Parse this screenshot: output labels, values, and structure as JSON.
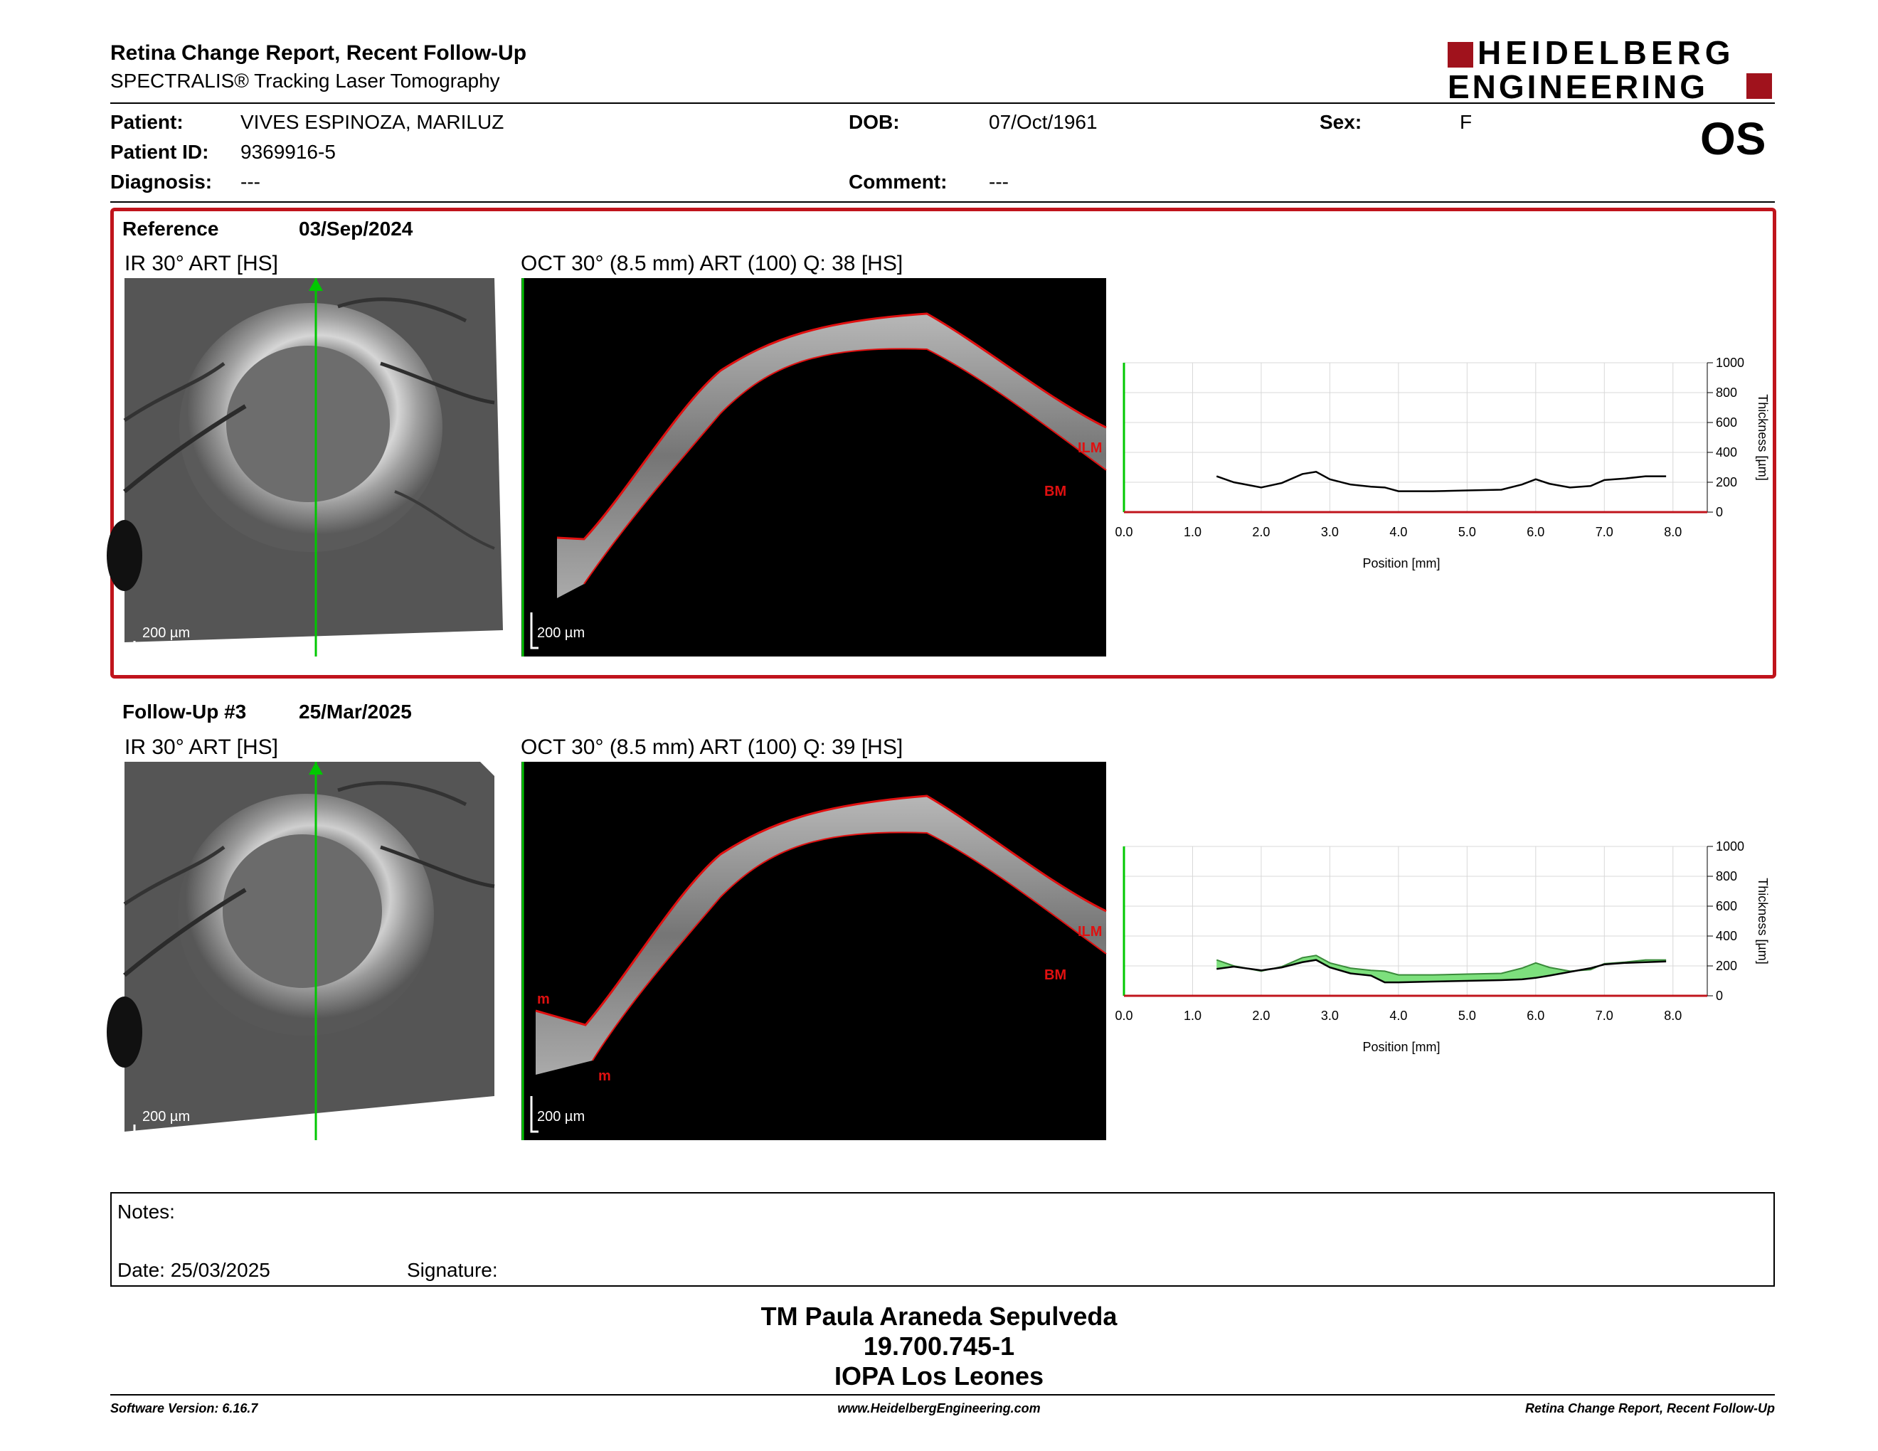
{
  "header": {
    "title": "Retina Change Report, Recent Follow-Up",
    "subtitle": "SPECTRALIS® Tracking Laser Tomography",
    "brand_line1": "HEIDELBERG",
    "brand_line2": "ENGINEERING",
    "eye": "OS"
  },
  "patient": {
    "name_label": "Patient:",
    "name": "VIVES ESPINOZA, MARILUZ",
    "id_label": "Patient ID:",
    "id": "9369916-5",
    "diagnosis_label": "Diagnosis:",
    "diagnosis": "---",
    "dob_label": "DOB:",
    "dob": "07/Oct/1961",
    "comment_label": "Comment:",
    "comment": "---",
    "sex_label": "Sex:",
    "sex": "F"
  },
  "reference": {
    "label": "Reference",
    "date": "03/Sep/2024",
    "ir_title": "IR 30° ART [HS]",
    "oct_title": "OCT 30° (8.5 mm) ART (100) Q: 38 [HS]",
    "ir_scale": "200 µm",
    "oct_scale": "200 µm",
    "ilm": "ILM",
    "bm": "BM"
  },
  "followup": {
    "label": "Follow-Up #3",
    "date": "25/Mar/2025",
    "ir_title": "IR 30° ART [HS]",
    "oct_title": "OCT 30° (8.5 mm) ART (100) Q: 39 [HS]",
    "ir_scale": "200 µm",
    "oct_scale": "200 µm",
    "ilm": "ILM",
    "bm": "BM",
    "marker": "m"
  },
  "chart_data": [
    {
      "type": "line",
      "title": "",
      "xlabel": "Position [mm]",
      "ylabel": "Thickness [µm]",
      "xlim": [
        0,
        8.5
      ],
      "ylim": [
        0,
        1000
      ],
      "xticks": [
        "0.0",
        "1.0",
        "2.0",
        "3.0",
        "4.0",
        "5.0",
        "6.0",
        "7.0",
        "8.0"
      ],
      "yticks": [
        "0",
        "200",
        "400",
        "600",
        "800",
        "1000"
      ],
      "grid": true,
      "series": [
        {
          "x": [
            1.35,
            1.6,
            2.0,
            2.3,
            2.6,
            2.8,
            3.0,
            3.3,
            3.6,
            3.8,
            4.0,
            4.5,
            5.0,
            5.5,
            5.8,
            6.0,
            6.2,
            6.5,
            6.8,
            7.0,
            7.3,
            7.6,
            7.9
          ],
          "values": [
            240,
            200,
            165,
            195,
            255,
            270,
            220,
            185,
            170,
            165,
            140,
            140,
            145,
            150,
            185,
            220,
            190,
            165,
            175,
            215,
            225,
            240,
            240
          ]
        }
      ]
    },
    {
      "type": "area",
      "title": "",
      "xlabel": "Position [mm]",
      "ylabel": "Thickness [µm]",
      "xlim": [
        0,
        8.5
      ],
      "ylim": [
        0,
        1000
      ],
      "xticks": [
        "0.0",
        "1.0",
        "2.0",
        "3.0",
        "4.0",
        "5.0",
        "6.0",
        "7.0",
        "8.0"
      ],
      "yticks": [
        "0",
        "200",
        "400",
        "600",
        "800",
        "1000"
      ],
      "grid": true,
      "series": [
        {
          "x": [
            1.35,
            1.6,
            2.0,
            2.3,
            2.6,
            2.8,
            3.0,
            3.3,
            3.6,
            3.8,
            4.0,
            4.5,
            5.0,
            5.5,
            5.8,
            6.0,
            6.2,
            6.5,
            6.8,
            7.0,
            7.3,
            7.6,
            7.9
          ],
          "values": [
            240,
            200,
            165,
            195,
            255,
            270,
            220,
            185,
            170,
            165,
            140,
            140,
            145,
            150,
            185,
            220,
            190,
            165,
            175,
            215,
            225,
            240,
            240
          ]
        },
        {
          "x": [
            1.35,
            1.6,
            2.0,
            2.3,
            2.6,
            2.8,
            3.0,
            3.3,
            3.6,
            3.8,
            4.0,
            4.5,
            5.0,
            5.5,
            5.8,
            6.0,
            6.2,
            6.5,
            6.8,
            7.0,
            7.3,
            7.6,
            7.9
          ],
          "values": [
            180,
            195,
            170,
            190,
            225,
            240,
            190,
            150,
            135,
            90,
            90,
            95,
            100,
            105,
            110,
            120,
            135,
            160,
            185,
            210,
            220,
            225,
            230
          ]
        }
      ]
    }
  ],
  "notes": {
    "notes_label": "Notes:",
    "date_label": "Date: 25/03/2025",
    "signature_label": "Signature:"
  },
  "signer": {
    "name": "TM Paula Araneda Sepulveda",
    "id": "19.700.745-1",
    "org": "IOPA Los Leones"
  },
  "footer": {
    "version": "Software Version: 6.16.7",
    "url": "www.HeidelbergEngineering.com",
    "report": "Retina Change Report, Recent Follow-Up"
  },
  "colors": {
    "accent_red": "#c0141c",
    "scan_green": "#00c800",
    "layer_red": "#e01010",
    "area_green": "#7de07d"
  }
}
